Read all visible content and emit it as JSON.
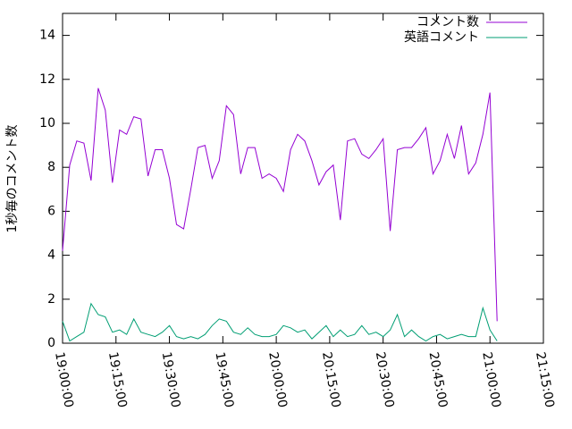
{
  "chart_data": {
    "type": "line",
    "y_label": "1秒毎のコメント数",
    "x": [
      "19:00:00",
      "19:02:00",
      "19:04:00",
      "19:06:00",
      "19:08:00",
      "19:10:00",
      "19:12:00",
      "19:14:00",
      "19:16:00",
      "19:18:00",
      "19:20:00",
      "19:22:00",
      "19:24:00",
      "19:26:00",
      "19:28:00",
      "19:30:00",
      "19:32:00",
      "19:34:00",
      "19:36:00",
      "19:38:00",
      "19:40:00",
      "19:42:00",
      "19:44:00",
      "19:46:00",
      "19:48:00",
      "19:50:00",
      "19:52:00",
      "19:54:00",
      "19:56:00",
      "19:58:00",
      "20:00:00",
      "20:02:00",
      "20:04:00",
      "20:06:00",
      "20:08:00",
      "20:10:00",
      "20:12:00",
      "20:14:00",
      "20:16:00",
      "20:18:00",
      "20:20:00",
      "20:22:00",
      "20:24:00",
      "20:26:00",
      "20:28:00",
      "20:30:00",
      "20:32:00",
      "20:34:00",
      "20:36:00",
      "20:38:00",
      "20:40:00",
      "20:42:00",
      "20:44:00",
      "20:46:00",
      "20:48:00",
      "20:50:00",
      "20:52:00",
      "20:54:00",
      "20:56:00",
      "20:58:00",
      "21:00:00",
      "21:02:00"
    ],
    "series": [
      {
        "name": "コメント数",
        "color": "#9400d3",
        "values": [
          4.2,
          8.1,
          9.2,
          9.1,
          7.4,
          11.6,
          10.6,
          7.3,
          9.7,
          9.5,
          10.3,
          10.2,
          7.6,
          8.8,
          8.8,
          7.5,
          5.4,
          5.2,
          7.0,
          8.9,
          9.0,
          7.5,
          8.3,
          10.8,
          10.4,
          7.7,
          8.9,
          8.9,
          7.5,
          7.7,
          7.5,
          6.9,
          8.8,
          9.5,
          9.2,
          8.3,
          7.2,
          7.8,
          8.1,
          5.6,
          9.2,
          9.3,
          8.6,
          8.4,
          8.8,
          9.3,
          5.1,
          8.8,
          8.9,
          8.9,
          9.3,
          9.8,
          7.7,
          8.3,
          9.5,
          8.4,
          9.9,
          7.7,
          8.2,
          9.5,
          11.4,
          1.0
        ]
      },
      {
        "name": "英語コメント",
        "color": "#009e73",
        "values": [
          1.0,
          0.1,
          0.3,
          0.5,
          1.8,
          1.3,
          1.2,
          0.5,
          0.6,
          0.4,
          1.1,
          0.5,
          0.4,
          0.3,
          0.5,
          0.8,
          0.3,
          0.2,
          0.3,
          0.2,
          0.4,
          0.8,
          1.1,
          1.0,
          0.5,
          0.4,
          0.7,
          0.4,
          0.3,
          0.3,
          0.4,
          0.8,
          0.7,
          0.5,
          0.6,
          0.2,
          0.5,
          0.8,
          0.3,
          0.6,
          0.3,
          0.4,
          0.8,
          0.4,
          0.5,
          0.3,
          0.6,
          1.3,
          0.3,
          0.6,
          0.3,
          0.1,
          0.3,
          0.4,
          0.2,
          0.3,
          0.4,
          0.3,
          0.3,
          1.6,
          0.6,
          0.1
        ]
      }
    ],
    "xlim": [
      "19:00:00",
      "21:15:00"
    ],
    "xticks": [
      "19:00:00",
      "19:15:00",
      "19:30:00",
      "19:45:00",
      "20:00:00",
      "20:15:00",
      "20:30:00",
      "20:45:00",
      "21:00:00",
      "21:15:00"
    ],
    "ylim": [
      0,
      15
    ],
    "yticks": [
      0,
      2,
      4,
      6,
      8,
      10,
      12,
      14
    ],
    "legend": "top-right"
  }
}
